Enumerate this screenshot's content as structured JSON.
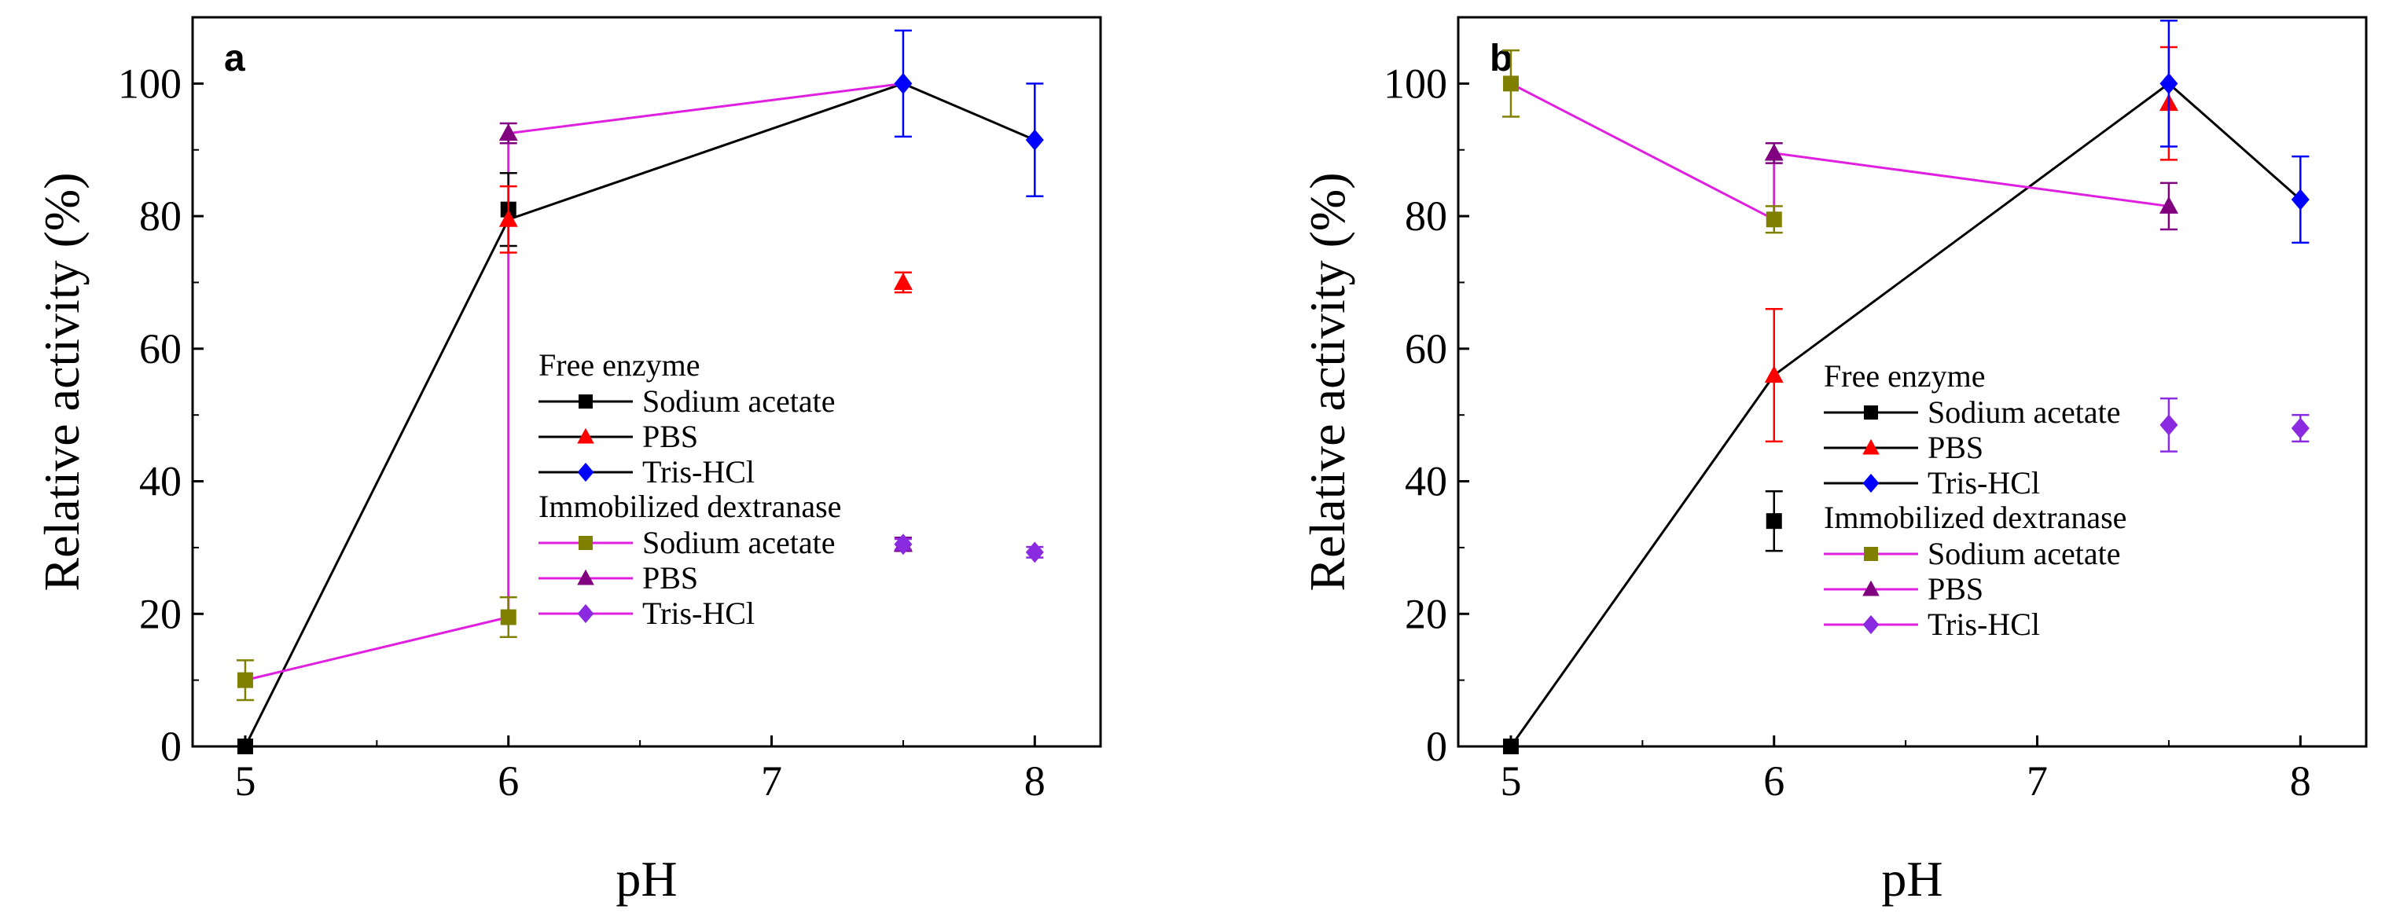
{
  "chart_data": [
    {
      "type": "line",
      "panel_label": "a",
      "xlabel": "pH",
      "ylabel": "Relative activity (%)",
      "xlim": [
        4.8,
        8.25
      ],
      "ylim": [
        0,
        110
      ],
      "xticks": [
        "5",
        "6",
        "7",
        "8"
      ],
      "yticks": [
        "0",
        "20",
        "40",
        "60",
        "80",
        "100"
      ],
      "legend": {
        "position": "center-right",
        "groups": [
          {
            "title": "Free enzyme",
            "entries": [
              0,
              1,
              2
            ]
          },
          {
            "title": "Immobilized dextranase",
            "entries": [
              3,
              4,
              5
            ]
          }
        ]
      },
      "connectors": [
        {
          "color": "#000000",
          "x": [
            5,
            6,
            7.5,
            8
          ],
          "y": [
            0,
            79.5,
            100,
            91.5
          ]
        },
        {
          "color": "#e020e0",
          "x": [
            5,
            6,
            6,
            7.5
          ],
          "y": [
            10,
            19.5,
            92.5,
            100
          ]
        }
      ],
      "series": [
        {
          "name": "Sodium acetate",
          "color": "#000000",
          "marker": "square",
          "x": [
            5,
            6
          ],
          "y": [
            0,
            81
          ],
          "err": [
            0,
            5.5
          ]
        },
        {
          "name": "PBS",
          "color": "#ff0000",
          "marker": "triangle",
          "x": [
            6,
            7.5
          ],
          "y": [
            79.5,
            70
          ],
          "err": [
            5,
            1.5
          ]
        },
        {
          "name": "Tris-HCl",
          "color": "#0000ff",
          "marker": "diamond",
          "x": [
            7.5,
            8
          ],
          "y": [
            100,
            91.5
          ],
          "err": [
            8,
            8.5
          ]
        },
        {
          "name": "Sodium acetate",
          "color": "#808000",
          "marker": "square",
          "x": [
            5,
            6
          ],
          "y": [
            10,
            19.5
          ],
          "err": [
            3,
            3
          ]
        },
        {
          "name": "PBS",
          "color": "#800080",
          "marker": "triangle",
          "x": [
            6,
            7.5
          ],
          "y": [
            92.5,
            30.5
          ],
          "err": [
            1.5,
            1
          ]
        },
        {
          "name": "Tris-HCl",
          "color": "#8a2be2",
          "marker": "diamond",
          "x": [
            7.5,
            8
          ],
          "y": [
            30.5,
            29.3
          ],
          "err": [
            0.8,
            0.8
          ]
        }
      ]
    },
    {
      "type": "line",
      "panel_label": "b",
      "xlabel": "pH",
      "ylabel": "Relative activity (%)",
      "xlim": [
        4.8,
        8.25
      ],
      "ylim": [
        0,
        110
      ],
      "xticks": [
        "5",
        "6",
        "7",
        "8"
      ],
      "yticks": [
        "0",
        "20",
        "40",
        "60",
        "80",
        "100"
      ],
      "legend": {
        "position": "center-right",
        "groups": [
          {
            "title": "Free enzyme",
            "entries": [
              0,
              1,
              2
            ]
          },
          {
            "title": "Immobilized dextranase",
            "entries": [
              3,
              4,
              5
            ]
          }
        ]
      },
      "connectors": [
        {
          "color": "#000000",
          "x": [
            5,
            6,
            7.5,
            8
          ],
          "y": [
            0,
            56,
            100,
            82.5
          ]
        },
        {
          "color": "#e020e0",
          "x": [
            5,
            6,
            6,
            7.5
          ],
          "y": [
            100,
            79.5,
            89.5,
            81.5
          ]
        }
      ],
      "series": [
        {
          "name": "Sodium acetate",
          "color": "#000000",
          "marker": "square",
          "x": [
            5,
            6
          ],
          "y": [
            0,
            34
          ],
          "err": [
            0,
            4.5
          ]
        },
        {
          "name": "PBS",
          "color": "#ff0000",
          "marker": "triangle",
          "x": [
            6,
            7.5
          ],
          "y": [
            56,
            97
          ],
          "err": [
            10,
            8.5
          ]
        },
        {
          "name": "Tris-HCl",
          "color": "#0000ff",
          "marker": "diamond",
          "x": [
            7.5,
            8
          ],
          "y": [
            100,
            82.5
          ],
          "err": [
            9.5,
            6.5
          ]
        },
        {
          "name": "Sodium acetate",
          "color": "#808000",
          "marker": "square",
          "x": [
            5,
            6
          ],
          "y": [
            100,
            79.5
          ],
          "err": [
            5,
            2
          ]
        },
        {
          "name": "PBS",
          "color": "#800080",
          "marker": "triangle",
          "x": [
            6,
            7.5
          ],
          "y": [
            89.5,
            81.5
          ],
          "err": [
            1.5,
            3.5
          ]
        },
        {
          "name": "Tris-HCl",
          "color": "#8a2be2",
          "marker": "diamond",
          "x": [
            7.5,
            8
          ],
          "y": [
            48.5,
            48
          ],
          "err": [
            4,
            2
          ]
        }
      ]
    }
  ]
}
